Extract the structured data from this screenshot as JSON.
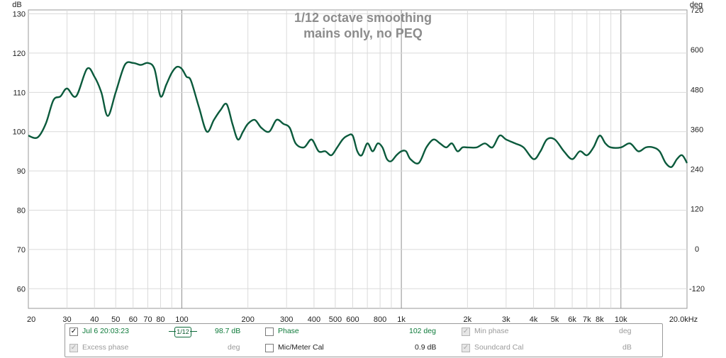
{
  "chart_data": {
    "type": "line",
    "title": "1/12 octave smoothing",
    "subtitle": "mains only, no PEQ",
    "ylabel_left": "dB",
    "ylabel_right": "deg",
    "xscale": "log",
    "xlim": [
      20,
      20000
    ],
    "ylim": [
      55,
      131
    ],
    "ylim_right": [
      -180,
      720
    ],
    "grid": true,
    "x_ticks": [
      {
        "value": 20,
        "label": "20"
      },
      {
        "value": 30,
        "label": "30"
      },
      {
        "value": 40,
        "label": "40"
      },
      {
        "value": 50,
        "label": "50"
      },
      {
        "value": 60,
        "label": "60"
      },
      {
        "value": 70,
        "label": "70"
      },
      {
        "value": 80,
        "label": "80"
      },
      {
        "value": 100,
        "label": "100"
      },
      {
        "value": 200,
        "label": "200"
      },
      {
        "value": 300,
        "label": "300"
      },
      {
        "value": 400,
        "label": "400"
      },
      {
        "value": 500,
        "label": "500"
      },
      {
        "value": 600,
        "label": "600"
      },
      {
        "value": 800,
        "label": "800"
      },
      {
        "value": 1000,
        "label": "1k"
      },
      {
        "value": 2000,
        "label": "2k"
      },
      {
        "value": 3000,
        "label": "3k"
      },
      {
        "value": 4000,
        "label": "4k"
      },
      {
        "value": 5000,
        "label": "5k"
      },
      {
        "value": 6000,
        "label": "6k"
      },
      {
        "value": 7000,
        "label": "7k"
      },
      {
        "value": 8000,
        "label": "8k"
      },
      {
        "value": 10000,
        "label": "10k"
      },
      {
        "value": 20000,
        "label": "20.0kHz"
      }
    ],
    "y_ticks_left": [
      60,
      70,
      80,
      90,
      100,
      110,
      120,
      130
    ],
    "y_ticks_right": [
      -120,
      0,
      120,
      240,
      360,
      480,
      600,
      720
    ],
    "series": [
      {
        "color": "#0b5a3c",
        "x": [
          20,
          22,
          24,
          26,
          28,
          30,
          33,
          37,
          40,
          43,
          46,
          50,
          55,
          60,
          65,
          70,
          75,
          80,
          85,
          90,
          95,
          100,
          105,
          110,
          120,
          130,
          140,
          150,
          160,
          170,
          180,
          190,
          200,
          215,
          230,
          250,
          270,
          290,
          310,
          330,
          360,
          390,
          420,
          450,
          480,
          510,
          540,
          570,
          600,
          630,
          660,
          700,
          740,
          780,
          820,
          860,
          900,
          950,
          1000,
          1050,
          1100,
          1200,
          1300,
          1400,
          1500,
          1600,
          1700,
          1800,
          1900,
          2000,
          2200,
          2400,
          2600,
          2800,
          3000,
          3300,
          3600,
          4000,
          4300,
          4600,
          5000,
          5500,
          6000,
          6500,
          7000,
          7500,
          8000,
          8500,
          9000,
          10000,
          11000,
          12000,
          13000,
          14000,
          15000,
          16000,
          17000,
          18000,
          19000,
          20000
        ],
        "y": [
          99,
          98.5,
          102,
          108,
          109,
          111,
          109,
          116,
          114,
          110,
          104,
          110,
          117,
          117.5,
          117,
          117.5,
          116,
          109,
          112,
          115,
          116.5,
          116,
          114,
          113,
          106,
          100,
          103,
          105.5,
          107,
          102,
          98,
          100,
          102,
          103,
          101,
          100,
          103,
          102,
          101,
          97,
          96,
          98,
          95,
          95,
          94,
          96,
          98,
          99,
          99,
          95,
          94,
          97,
          95,
          97,
          96,
          93,
          92.5,
          94,
          95,
          95,
          93,
          92,
          96,
          98,
          97,
          96,
          97,
          95,
          96,
          96,
          96,
          97,
          96,
          99,
          98,
          97,
          96,
          93,
          95,
          98,
          98,
          95,
          93,
          95,
          94,
          96,
          99,
          97,
          96,
          96,
          97,
          95,
          96,
          96,
          95,
          92,
          91,
          93,
          94,
          92
        ]
      }
    ]
  },
  "legend": {
    "row1": {
      "measurement_label": "Jul 6 20:03:23",
      "smoothing_label": "1/12",
      "value_db": "98.7 dB",
      "phase_label": "Phase",
      "phase_value": "102 deg",
      "min_phase_label": "Min phase",
      "min_phase_unit": "deg"
    },
    "row2": {
      "excess_phase_label": "Excess phase",
      "excess_phase_unit": "deg",
      "mic_cal_label": "Mic/Meter Cal",
      "mic_cal_value": "0.9 dB",
      "soundcard_cal_label": "Soundcard Cal",
      "soundcard_cal_unit": "dB"
    }
  }
}
